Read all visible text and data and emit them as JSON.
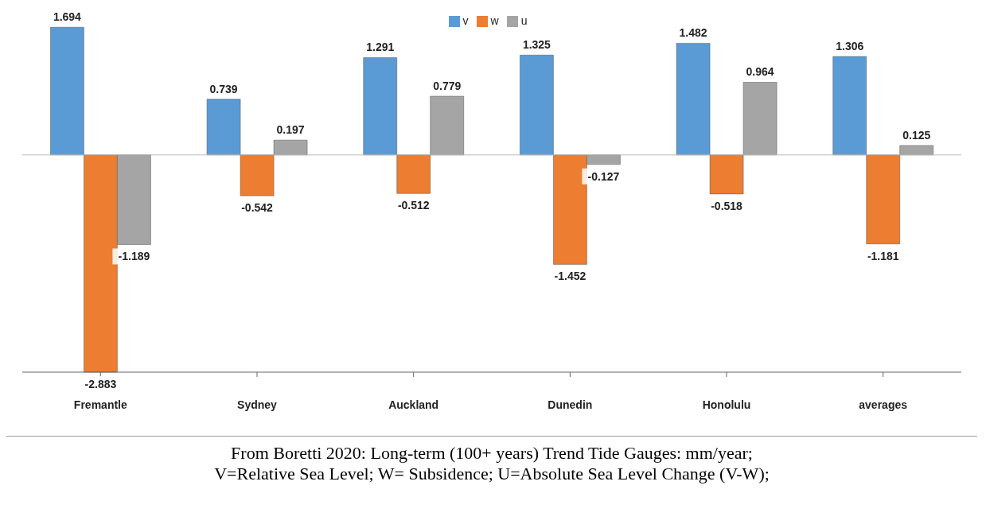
{
  "chart_data": {
    "type": "bar",
    "categories": [
      "Fremantle",
      "Sydney",
      "Auckland",
      "Dunedin",
      "Honolulu",
      "averages"
    ],
    "series": [
      {
        "name": "v",
        "color": "#5b9bd5",
        "values": [
          1.694,
          0.739,
          1.291,
          1.325,
          1.482,
          1.306
        ]
      },
      {
        "name": "w",
        "color": "#ed7d31",
        "values": [
          -2.883,
          -0.542,
          -0.512,
          -1.452,
          -0.518,
          -1.181
        ]
      },
      {
        "name": "u",
        "color": "#a5a5a5",
        "values": [
          -1.189,
          0.197,
          0.779,
          -0.127,
          0.964,
          0.125
        ]
      }
    ],
    "data_labels": true,
    "legend": "top",
    "grid": false,
    "annotations": [
      "From Boretti 2020:     Long-term (100+ years) Trend Tide Gauges:  mm/year;",
      "V=Relative Sea Level; W= Subsidence; U=Absolute Sea Level Change (V-W);"
    ]
  }
}
